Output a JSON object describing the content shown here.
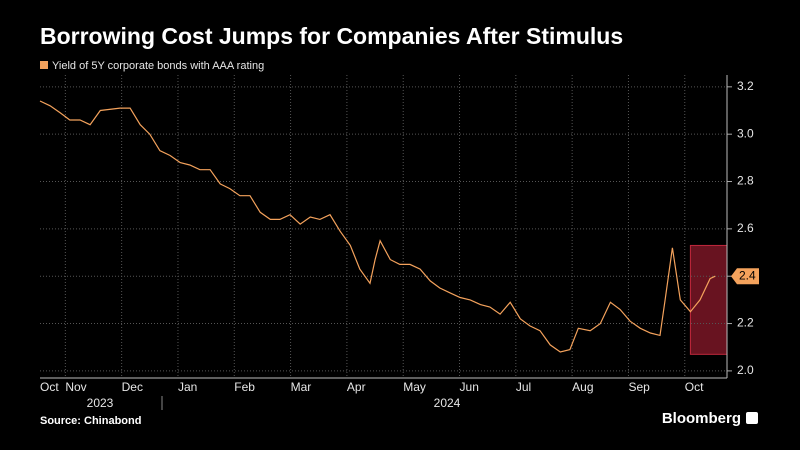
{
  "chart_data": {
    "type": "line",
    "title": "Borrowing Cost Jumps for Companies After Stimulus",
    "source": "Source: Chinabond",
    "brand": "Bloomberg",
    "years": [
      "2023",
      "2024"
    ],
    "series": [
      {
        "name": "Yield of 5Y corporate bonds with AAA rating",
        "color": "#f4a25c",
        "x": [
          0.55,
          0.73,
          0.91,
          1.08,
          1.26,
          1.44,
          1.62,
          1.97,
          2.15,
          2.33,
          2.5,
          2.68,
          2.86,
          3.04,
          3.21,
          3.39,
          3.57,
          3.75,
          3.92,
          4.1,
          4.28,
          4.46,
          4.64,
          4.81,
          4.99,
          5.17,
          5.35,
          5.52,
          5.7,
          5.88,
          6.06,
          6.23,
          6.41,
          6.5,
          6.59,
          6.77,
          6.94,
          7.12,
          7.3,
          7.48,
          7.65,
          7.83,
          8.01,
          8.19,
          8.37,
          8.54,
          8.72,
          8.9,
          9.08,
          9.25,
          9.43,
          9.61,
          9.79,
          9.96,
          10.11,
          10.32,
          10.5,
          10.68,
          10.85,
          11.03,
          11.21,
          11.39,
          11.56,
          11.65,
          11.78,
          11.92,
          12.1,
          12.27,
          12.45,
          12.54
        ],
        "values": [
          3.14,
          3.12,
          3.09,
          3.06,
          3.06,
          3.04,
          3.1,
          3.11,
          3.11,
          3.04,
          3.0,
          2.93,
          2.91,
          2.88,
          2.87,
          2.85,
          2.85,
          2.79,
          2.77,
          2.74,
          2.74,
          2.67,
          2.64,
          2.64,
          2.66,
          2.62,
          2.65,
          2.64,
          2.66,
          2.59,
          2.53,
          2.43,
          2.37,
          2.47,
          2.55,
          2.47,
          2.45,
          2.45,
          2.43,
          2.38,
          2.35,
          2.33,
          2.31,
          2.3,
          2.28,
          2.27,
          2.24,
          2.29,
          2.22,
          2.19,
          2.17,
          2.11,
          2.08,
          2.09,
          2.18,
          2.17,
          2.2,
          2.29,
          2.26,
          2.21,
          2.18,
          2.16,
          2.15,
          2.3,
          2.52,
          2.3,
          2.25,
          2.3,
          2.39,
          2.4
        ]
      }
    ],
    "xlim": [
      0.55,
      12.75
    ],
    "xticks": [
      {
        "value": 0,
        "label": "Oct"
      },
      {
        "value": 1,
        "label": "Nov"
      },
      {
        "value": 2,
        "label": "Dec"
      },
      {
        "value": 3,
        "label": "Jan"
      },
      {
        "value": 4,
        "label": "Feb"
      },
      {
        "value": 5,
        "label": "Mar"
      },
      {
        "value": 6,
        "label": "Apr"
      },
      {
        "value": 7,
        "label": "May"
      },
      {
        "value": 8,
        "label": "Jun"
      },
      {
        "value": 9,
        "label": "Jul"
      },
      {
        "value": 10,
        "label": "Aug"
      },
      {
        "value": 11,
        "label": "Sep"
      },
      {
        "value": 12,
        "label": "Oct"
      }
    ],
    "ylim": [
      1.97,
      3.25
    ],
    "yticks": [
      {
        "value": 2.0,
        "label": "2.0"
      },
      {
        "value": 2.2,
        "label": "2.2"
      },
      {
        "value": 2.4,
        "label": "2.4"
      },
      {
        "value": 2.6,
        "label": "2.6"
      },
      {
        "value": 2.8,
        "label": "2.8"
      },
      {
        "value": 3.0,
        "label": "3.0"
      },
      {
        "value": 3.2,
        "label": "3.2"
      }
    ],
    "grid": true,
    "highlight": {
      "x": [
        12.1,
        12.75
      ],
      "y": [
        2.07,
        2.53
      ],
      "color": "#8b1a2b"
    }
  }
}
